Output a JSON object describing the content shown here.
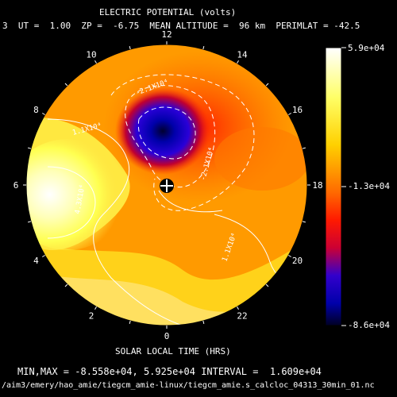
{
  "chart_data": {
    "type": "heatmap",
    "title": "ELECTRIC POTENTIAL (volts)",
    "header": "3  UT =  1.00  ZP =  -6.75  MEAN ALTITUDE =  96 km  PERIMLAT = -42.5",
    "xlabel": "SOLAR LOCAL TIME (HRS)",
    "hour_labels": [
      "0",
      "2",
      "4",
      "6",
      "8",
      "10",
      "12",
      "14",
      "16",
      "18",
      "20",
      "22"
    ],
    "colorbar": {
      "max_label": "5.9e+04",
      "mid_label": "-1.3e+04",
      "min_label": "-8.6e+04",
      "max": 59000,
      "min": -86000,
      "stops": [
        "#ffffff",
        "#ffff00",
        "#ff8800",
        "#ff0000",
        "#0000ff",
        "#000033"
      ]
    },
    "contour_labels": [
      "-2.1X10⁴",
      "-2.1X10⁴",
      "1.1X10⁴",
      "4.3X10⁴",
      "1.1X10⁴"
    ],
    "summary": "MIN,MAX = -8.558e+04, 5.925e+04 INTERVAL =  1.609e+04",
    "footer": "/aim3/emery/hao_amie/tiegcm_amie-linux/tiegcm_amie.s_calcloc_04313_30min_01.nc"
  }
}
